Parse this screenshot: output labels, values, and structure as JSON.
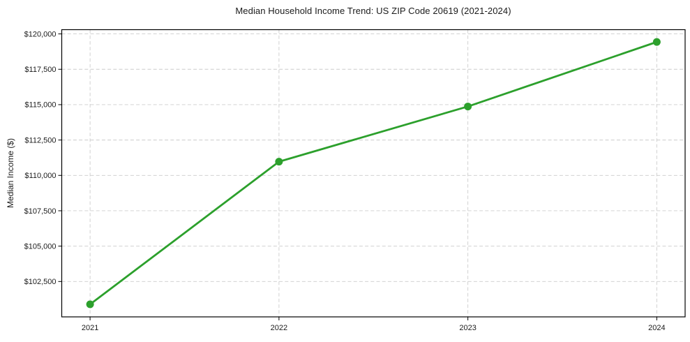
{
  "chart_data": {
    "type": "line",
    "title": "Median Household Income Trend: US ZIP Code 20619 (2021-2024)",
    "xlabel": "",
    "ylabel": "Median Income ($)",
    "x": [
      "2021",
      "2022",
      "2023",
      "2024"
    ],
    "xtick_labels": [
      "2021",
      "2022",
      "2023",
      "2024"
    ],
    "values": [
      100890,
      110970,
      114870,
      119430
    ],
    "yticks": [
      102500,
      105000,
      107500,
      110000,
      112500,
      115000,
      117500,
      120000
    ],
    "ytick_labels": [
      "$102,500",
      "$105,000",
      "$107,500",
      "$110,000",
      "$112,500",
      "$115,000",
      "$117,500",
      "$120,000"
    ],
    "ylim": [
      100000,
      120300
    ],
    "grid": true,
    "grid_style": "dashed",
    "grid_color": "#cccccc",
    "legend": "none",
    "line_color": "#2ca02c",
    "marker": "circle",
    "marker_size": 5.5,
    "line_width": 2.8,
    "axis_color": "#000000",
    "text_color": "#1a1a1a",
    "background": "#ffffff"
  }
}
